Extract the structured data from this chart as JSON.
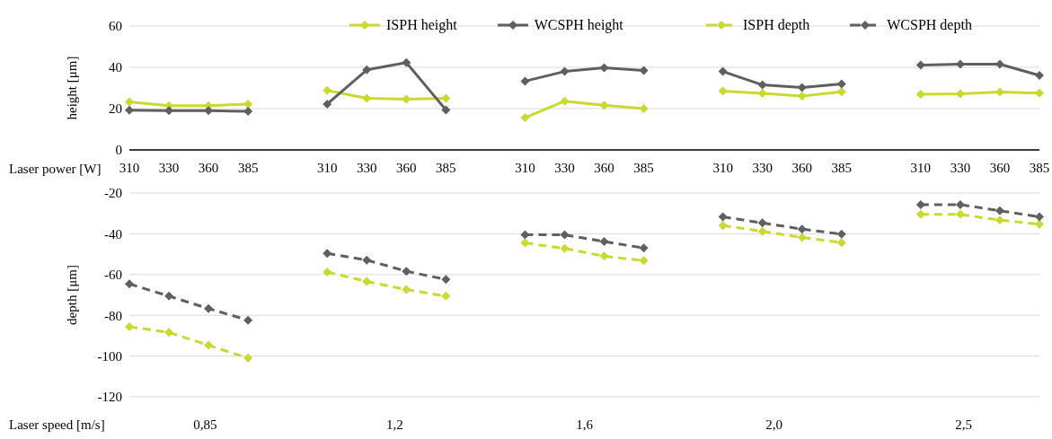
{
  "chart_data": [
    {
      "type": "line",
      "ylabel": "height  [μm]",
      "xlabel": "Laser power [W]",
      "categories": [
        "310",
        "330",
        "360",
        "385",
        null,
        "310",
        "330",
        "360",
        "385",
        null,
        "310",
        "330",
        "360",
        "385",
        null,
        "310",
        "330",
        "360",
        "385",
        null,
        "310",
        "330",
        "360",
        "385"
      ],
      "series": [
        {
          "name": "ISPH height",
          "color": "#c9d92f",
          "line_style": "solid",
          "values": [
            23.3,
            21.4,
            21.4,
            22.2,
            null,
            28.8,
            25.0,
            24.6,
            25.0,
            null,
            15.6,
            23.6,
            21.6,
            20.0,
            null,
            28.5,
            27.4,
            26.1,
            28.2,
            null,
            27.0,
            27.2,
            28.0,
            27.5
          ]
        },
        {
          "name": "WCSPH height",
          "color": "#5f5f5f",
          "line_style": "solid",
          "values": [
            19.2,
            19.0,
            19.0,
            18.7,
            null,
            22.2,
            38.8,
            42.3,
            19.4,
            null,
            33.3,
            38.0,
            39.8,
            38.5,
            null,
            38.0,
            31.5,
            30.2,
            32.0,
            null,
            41.1,
            41.5,
            41.5,
            36.1
          ]
        }
      ],
      "ylim": [
        0,
        60
      ],
      "yticks": [
        0,
        20,
        40,
        60
      ],
      "grid": "y",
      "legend": "top",
      "marker": "diamond"
    },
    {
      "type": "line",
      "ylabel": "depth [μm]",
      "xlabel": "Laser speed [m/s]",
      "categories": [
        "310",
        "330",
        "360",
        "385",
        null,
        "310",
        "330",
        "360",
        "385",
        null,
        "310",
        "330",
        "360",
        "385",
        null,
        "310",
        "330",
        "360",
        "385",
        null,
        "310",
        "330",
        "360",
        "385"
      ],
      "series": [
        {
          "name": "ISPH depth",
          "color": "#c9d92f",
          "line_style": "dashed",
          "values": [
            -85.6,
            -88.4,
            -94.7,
            -101.0,
            null,
            -58.8,
            -63.4,
            -67.4,
            -70.6,
            null,
            -44.5,
            -47.2,
            -51.0,
            -53.2,
            null,
            -36.0,
            -38.8,
            -41.8,
            -44.3,
            null,
            -30.5,
            -30.5,
            -33.3,
            -35.3
          ]
        },
        {
          "name": "WCSPH depth",
          "color": "#5f5f5f",
          "line_style": "dashed",
          "values": [
            -64.6,
            -70.6,
            -76.7,
            -82.4,
            null,
            -49.6,
            -52.9,
            -58.4,
            -62.4,
            null,
            -40.5,
            -40.5,
            -43.8,
            -47.0,
            null,
            -31.7,
            -34.7,
            -37.7,
            -40.2,
            null,
            -25.7,
            -25.7,
            -28.7,
            -31.7
          ]
        }
      ],
      "ylim": [
        -120,
        -20
      ],
      "yticks": [
        -120,
        -100,
        -80,
        -60,
        -40,
        -20
      ],
      "grid": "y",
      "legend": "top right",
      "marker": "diamond",
      "tick_labels": "y",
      "annotations": [
        "0,85",
        "1,2",
        "1,6",
        "2,0",
        "2,5"
      ]
    }
  ]
}
